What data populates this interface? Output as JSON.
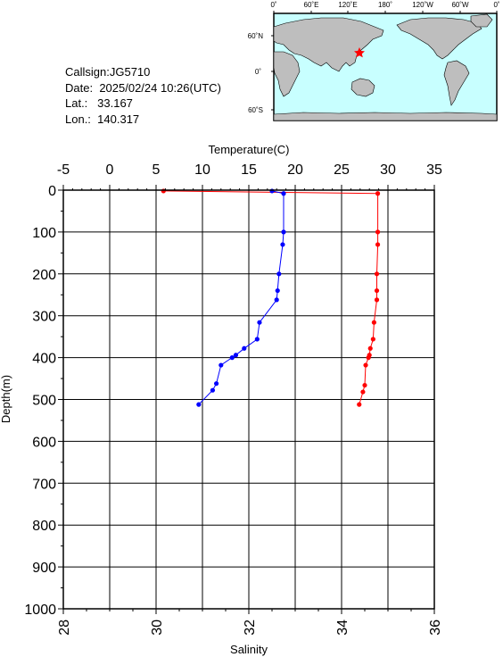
{
  "station": {
    "callsign_label": "Callsign:",
    "callsign": "JG5710",
    "date_label": "Date:",
    "date": "2025/02/24 10:26(UTC)",
    "lat_label": "Lat.:",
    "lat": "33.167",
    "lon_label": "Lon.:",
    "lon": "140.317"
  },
  "map": {
    "top_ticks": [
      "0˚",
      "60˚E",
      "120˚E",
      "180˚",
      "120˚W",
      "60˚W",
      "0˚"
    ],
    "left_ticks": [
      "60˚N",
      "0˚",
      "60˚S"
    ],
    "ocean_color": "#c8ffff",
    "land_color": "#bebebe",
    "marker_color": "#ff0000"
  },
  "chart_data": {
    "type": "line",
    "x_top": {
      "label": "Temperature(C)",
      "range": [
        -5,
        35
      ],
      "ticks": [
        "-5",
        "0",
        "5",
        "10",
        "15",
        "20",
        "25",
        "30",
        "35"
      ]
    },
    "x_bottom": {
      "label": "Salinity",
      "range": [
        28,
        36
      ],
      "ticks": [
        "28",
        "30",
        "32",
        "34",
        "36"
      ]
    },
    "y": {
      "label": "Depth(m)",
      "range": [
        0,
        1000
      ],
      "inverted": true,
      "ticks": [
        "0",
        "100",
        "200",
        "300",
        "400",
        "500",
        "600",
        "700",
        "800",
        "900",
        "1000"
      ]
    },
    "grid": true,
    "series": [
      {
        "axis": "temperature",
        "color": "#ff0000",
        "points": [
          [
            5.8,
            2
          ],
          [
            28.9,
            8
          ],
          [
            28.9,
            100
          ],
          [
            28.9,
            130
          ],
          [
            28.8,
            200
          ],
          [
            28.8,
            240
          ],
          [
            28.8,
            262
          ],
          [
            28.5,
            316
          ],
          [
            28.4,
            356
          ],
          [
            28.1,
            378
          ],
          [
            28.0,
            394
          ],
          [
            27.9,
            400
          ],
          [
            27.6,
            418
          ],
          [
            27.5,
            466
          ],
          [
            27.3,
            482
          ],
          [
            26.9,
            512
          ]
        ]
      },
      {
        "axis": "salinity",
        "color": "#0000ff",
        "points": [
          [
            32.5,
            2
          ],
          [
            32.75,
            8
          ],
          [
            32.75,
            100
          ],
          [
            32.73,
            130
          ],
          [
            32.65,
            200
          ],
          [
            32.62,
            240
          ],
          [
            32.6,
            262
          ],
          [
            32.23,
            316
          ],
          [
            32.18,
            356
          ],
          [
            31.9,
            378
          ],
          [
            31.72,
            394
          ],
          [
            31.64,
            400
          ],
          [
            31.4,
            418
          ],
          [
            31.3,
            462
          ],
          [
            31.22,
            478
          ],
          [
            30.92,
            512
          ]
        ]
      }
    ]
  }
}
